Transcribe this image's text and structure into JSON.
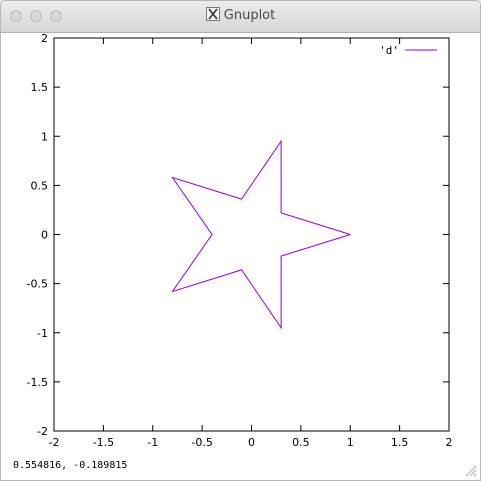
{
  "window": {
    "title": "Gnuplot"
  },
  "status": {
    "coordinates": "0.554816, -0.189815"
  },
  "chart_data": {
    "type": "line",
    "title": "",
    "xlabel": "",
    "ylabel": "",
    "xlim": [
      -2,
      2
    ],
    "ylim": [
      -2,
      2
    ],
    "grid": false,
    "legend": "top-right",
    "x_ticks": [
      "-2",
      "-1.5",
      "-1",
      "-0.5",
      "0",
      "0.5",
      "1",
      "1.5",
      "2"
    ],
    "y_ticks": [
      "-2",
      "-1.5",
      "-1",
      "-0.5",
      "0",
      "0.5",
      "1",
      "1.5",
      "2"
    ],
    "series": [
      {
        "name": "'d'",
        "color": "#9400d3",
        "x": [
          1,
          0.3,
          0.3,
          -0.1,
          -0.8,
          -0.4,
          -0.8,
          -0.1,
          0.3,
          0.3,
          1
        ],
        "y": [
          0,
          0.22,
          0.95,
          0.36,
          0.58,
          0,
          -0.58,
          -0.36,
          -0.95,
          -0.22,
          0
        ]
      }
    ]
  }
}
